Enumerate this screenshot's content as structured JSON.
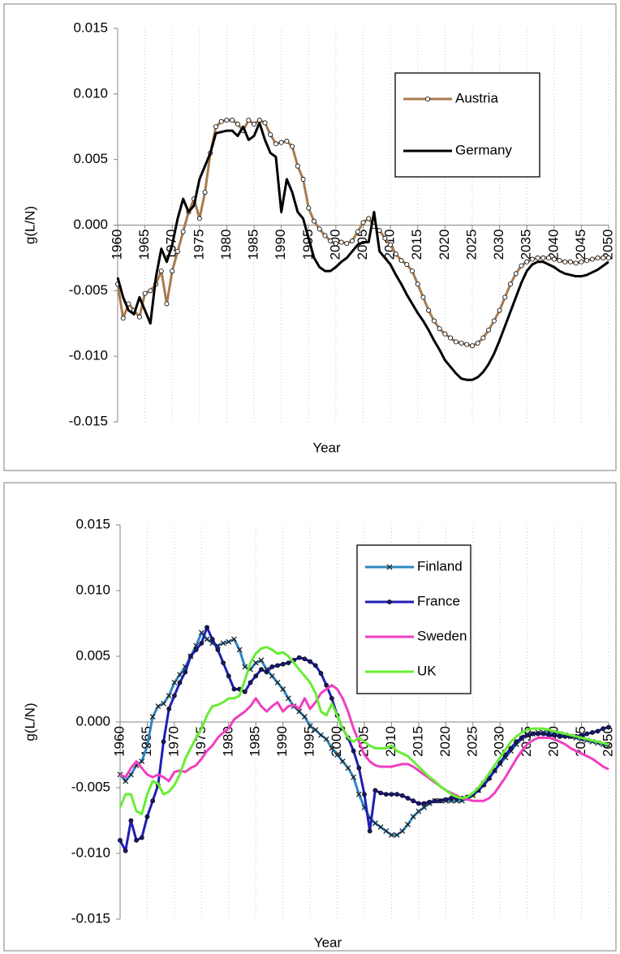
{
  "chart_data": [
    {
      "type": "line",
      "x_label": "Year",
      "y_label": "g(L/N)",
      "x": [
        1960,
        1961,
        1962,
        1963,
        1964,
        1965,
        1966,
        1967,
        1968,
        1969,
        1970,
        1971,
        1972,
        1973,
        1974,
        1975,
        1976,
        1977,
        1978,
        1979,
        1980,
        1981,
        1982,
        1983,
        1984,
        1985,
        1986,
        1987,
        1988,
        1989,
        1990,
        1991,
        1992,
        1993,
        1994,
        1995,
        1996,
        1997,
        1998,
        1999,
        2000,
        2001,
        2002,
        2003,
        2004,
        2005,
        2006,
        2007,
        2008,
        2009,
        2010,
        2011,
        2012,
        2013,
        2014,
        2015,
        2016,
        2017,
        2018,
        2019,
        2020,
        2021,
        2022,
        2023,
        2024,
        2025,
        2026,
        2027,
        2028,
        2029,
        2030,
        2031,
        2032,
        2033,
        2034,
        2035,
        2036,
        2037,
        2038,
        2039,
        2040,
        2041,
        2042,
        2043,
        2044,
        2045,
        2046,
        2047,
        2048,
        2049,
        2050
      ],
      "xlim": [
        1960,
        2050
      ],
      "xticks": [
        1960,
        1965,
        1970,
        1975,
        1980,
        1985,
        1990,
        1995,
        2000,
        2005,
        2010,
        2015,
        2020,
        2025,
        2030,
        2035,
        2040,
        2045,
        2050
      ],
      "ylim": [
        -0.015,
        0.015
      ],
      "yticks": [
        -0.015,
        {
          "value": -0.01,
          "label": "-0.010"
        },
        -0.005,
        {
          "value": 0,
          "label": "0.000"
        },
        0.005,
        {
          "value": 0.01,
          "label": "0.010"
        },
        0.015
      ],
      "grid": "x",
      "legend": "upper right",
      "series": [
        {
          "name": "Austria",
          "color": "#a87b4f",
          "marker": "circle",
          "values": [
            -0.0045,
            -0.0071,
            -0.006,
            -0.0065,
            -0.007,
            -0.0052,
            -0.005,
            -0.0045,
            -0.0035,
            -0.006,
            -0.0035,
            -0.002,
            -0.0005,
            0.001,
            0.002,
            0.0005,
            0.0025,
            0.0055,
            0.0075,
            0.0079,
            0.008,
            0.008,
            0.0077,
            0.0072,
            0.008,
            0.0077,
            0.008,
            0.0078,
            0.0069,
            0.0062,
            0.0063,
            0.0064,
            0.006,
            0.0045,
            0.0035,
            0.0013,
            0.0003,
            -0.0003,
            -0.0008,
            -0.0012,
            -0.0014,
            -0.0013,
            -0.0014,
            -0.0012,
            -0.0005,
            0.0002,
            0.0005,
            -0.0001,
            -0.0004,
            -0.001,
            -0.0015,
            -0.0022,
            -0.0027,
            -0.003,
            -0.0035,
            -0.0045,
            -0.0055,
            -0.0065,
            -0.0073,
            -0.0079,
            -0.0083,
            -0.0086,
            -0.0089,
            -0.009,
            -0.0091,
            -0.0092,
            -0.009,
            -0.0086,
            -0.008,
            -0.0073,
            -0.0065,
            -0.0055,
            -0.0045,
            -0.0037,
            -0.0031,
            -0.0028,
            -0.0026,
            -0.0025,
            -0.0025,
            -0.0025,
            -0.0026,
            -0.0027,
            -0.0028,
            -0.0028,
            -0.0029,
            -0.0028,
            -0.0027,
            -0.0026,
            -0.0025,
            -0.0025,
            -0.0025
          ]
        },
        {
          "name": "Germany",
          "color": "#000000",
          "marker": "none",
          "values": [
            -0.004,
            -0.0055,
            -0.0065,
            -0.0068,
            -0.0055,
            -0.0065,
            -0.0075,
            -0.004,
            -0.0018,
            -0.0028,
            -0.0015,
            0.0005,
            0.002,
            0.001,
            0.0015,
            0.0035,
            0.0045,
            0.0055,
            0.007,
            0.0071,
            0.0072,
            0.0072,
            0.0068,
            0.0075,
            0.0065,
            0.0068,
            0.0078,
            0.0065,
            0.0055,
            0.0052,
            0.001,
            0.0035,
            0.0025,
            0.001,
            0.0005,
            -0.001,
            -0.0025,
            -0.0032,
            -0.0035,
            -0.0035,
            -0.0032,
            -0.0028,
            -0.0025,
            -0.002,
            -0.0015,
            -0.0013,
            -0.0013,
            0.001,
            -0.002,
            -0.0025,
            -0.003,
            -0.0038,
            -0.0045,
            -0.0053,
            -0.006,
            -0.0067,
            -0.0073,
            -0.008,
            -0.0088,
            -0.0095,
            -0.0103,
            -0.0108,
            -0.0113,
            -0.0117,
            -0.0118,
            -0.0118,
            -0.0116,
            -0.0112,
            -0.0106,
            -0.0098,
            -0.0088,
            -0.0077,
            -0.0066,
            -0.0055,
            -0.0044,
            -0.0035,
            -0.003,
            -0.0028,
            -0.0028,
            -0.003,
            -0.0032,
            -0.0035,
            -0.0037,
            -0.0038,
            -0.0039,
            -0.0039,
            -0.0038,
            -0.0036,
            -0.0034,
            -0.0031,
            -0.0028
          ]
        }
      ]
    },
    {
      "type": "line",
      "x_label": "Year",
      "y_label": "g(L/N)",
      "x": [
        1960,
        1961,
        1962,
        1963,
        1964,
        1965,
        1966,
        1967,
        1968,
        1969,
        1970,
        1971,
        1972,
        1973,
        1974,
        1975,
        1976,
        1977,
        1978,
        1979,
        1980,
        1981,
        1982,
        1983,
        1984,
        1985,
        1986,
        1987,
        1988,
        1989,
        1990,
        1991,
        1992,
        1993,
        1994,
        1995,
        1996,
        1997,
        1998,
        1999,
        2000,
        2001,
        2002,
        2003,
        2004,
        2005,
        2006,
        2007,
        2008,
        2009,
        2010,
        2011,
        2012,
        2013,
        2014,
        2015,
        2016,
        2017,
        2018,
        2019,
        2020,
        2021,
        2022,
        2023,
        2024,
        2025,
        2026,
        2027,
        2028,
        2029,
        2030,
        2031,
        2032,
        2033,
        2034,
        2035,
        2036,
        2037,
        2038,
        2039,
        2040,
        2041,
        2042,
        2043,
        2044,
        2045,
        2046,
        2047,
        2048,
        2049,
        2050
      ],
      "xlim": [
        1960,
        2050
      ],
      "xticks": [
        1960,
        1965,
        1970,
        1975,
        1980,
        1985,
        1990,
        1995,
        2000,
        2005,
        2010,
        2015,
        2020,
        2025,
        2030,
        2035,
        2040,
        2045,
        2050
      ],
      "ylim": [
        -0.015,
        0.015
      ],
      "yticks": [
        -0.015,
        {
          "value": -0.01,
          "label": "-0.010"
        },
        -0.005,
        {
          "value": 0,
          "label": "0.000"
        },
        0.005,
        {
          "value": 0.01,
          "label": "0.010"
        },
        0.015
      ],
      "grid": "x",
      "legend": "upper right",
      "series": [
        {
          "name": "Finland",
          "color": "#2e86c1",
          "marker": "x",
          "values": [
            -0.004,
            -0.0045,
            -0.004,
            -0.0033,
            -0.003,
            -0.0018,
            0.0004,
            0.0012,
            0.0014,
            0.002,
            0.003,
            0.0036,
            0.0042,
            0.005,
            0.0058,
            0.0068,
            0.0063,
            0.006,
            0.0058,
            0.006,
            0.0061,
            0.0063,
            0.0055,
            0.0042,
            0.004,
            0.0045,
            0.0047,
            0.004,
            0.0035,
            0.003,
            0.0025,
            0.0018,
            0.0012,
            0.0008,
            0.0004,
            -0.0003,
            -0.0006,
            -0.001,
            -0.0013,
            -0.002,
            -0.0025,
            -0.003,
            -0.0035,
            -0.0042,
            -0.0055,
            -0.0065,
            -0.0073,
            -0.0077,
            -0.008,
            -0.0083,
            -0.0086,
            -0.0086,
            -0.0083,
            -0.0078,
            -0.0072,
            -0.0068,
            -0.0065,
            -0.0062,
            -0.006,
            -0.006,
            -0.006,
            -0.006,
            -0.006,
            -0.006,
            -0.0058,
            -0.0056,
            -0.0052,
            -0.0047,
            -0.0042,
            -0.0037,
            -0.0032,
            -0.0027,
            -0.0022,
            -0.0017,
            -0.0013,
            -0.001,
            -0.0009,
            -0.0008,
            -0.0008,
            -0.0008,
            -0.0008,
            -0.0009,
            -0.001,
            -0.0011,
            -0.0012,
            -0.0013,
            -0.0014,
            -0.0015,
            -0.0016,
            -0.0017,
            -0.0018
          ]
        },
        {
          "name": "France",
          "color": "#1f1fb4",
          "marker": "dot",
          "values": [
            -0.009,
            -0.0098,
            -0.0075,
            -0.009,
            -0.0088,
            -0.0072,
            -0.006,
            -0.0048,
            -0.0015,
            0.001,
            0.002,
            0.003,
            0.0038,
            0.005,
            0.0055,
            0.006,
            0.0072,
            0.0063,
            0.0055,
            0.0045,
            0.0035,
            0.0025,
            0.0025,
            0.0023,
            0.003,
            0.0035,
            0.004,
            0.0038,
            0.0042,
            0.0043,
            0.0044,
            0.0045,
            0.0047,
            0.0049,
            0.0048,
            0.0046,
            0.0043,
            0.0037,
            0.0028,
            0.0018,
            0.0005,
            -0.0005,
            -0.0012,
            -0.0022,
            -0.0035,
            -0.0055,
            -0.0083,
            -0.0052,
            -0.0054,
            -0.0055,
            -0.0055,
            -0.0055,
            -0.0056,
            -0.0058,
            -0.006,
            -0.0062,
            -0.0062,
            -0.0061,
            -0.006,
            -0.006,
            -0.0059,
            -0.0058,
            -0.0058,
            -0.0058,
            -0.0057,
            -0.0055,
            -0.0052,
            -0.0048,
            -0.0043,
            -0.0037,
            -0.0031,
            -0.0025,
            -0.002,
            -0.0015,
            -0.0012,
            -0.001,
            -0.0009,
            -0.0009,
            -0.0009,
            -0.001,
            -0.001,
            -0.0011,
            -0.0011,
            -0.0011,
            -0.0011,
            -0.001,
            -0.0009,
            -0.0008,
            -0.0007,
            -0.0005,
            -0.0004
          ]
        },
        {
          "name": "Sweden",
          "color": "#f03fc0",
          "marker": "none",
          "values": [
            -0.004,
            -0.0042,
            -0.0035,
            -0.003,
            -0.0035,
            -0.004,
            -0.0042,
            -0.004,
            -0.0042,
            -0.0045,
            -0.0038,
            -0.0037,
            -0.0038,
            -0.0035,
            -0.0033,
            -0.0028,
            -0.0022,
            -0.0018,
            -0.0012,
            -0.0008,
            -0.0005,
            0.0002,
            0.0005,
            0.0008,
            0.0012,
            0.0018,
            0.0012,
            0.0008,
            0.0012,
            0.0015,
            0.0008,
            0.0012,
            0.0013,
            0.001,
            0.0018,
            0.001,
            0.0015,
            0.0022,
            0.0025,
            0.0028,
            0.0025,
            0.0018,
            0.0008,
            -0.0005,
            -0.0015,
            -0.0025,
            -0.003,
            -0.0033,
            -0.0034,
            -0.0034,
            -0.0034,
            -0.0033,
            -0.0032,
            -0.0032,
            -0.0034,
            -0.0037,
            -0.004,
            -0.0043,
            -0.0046,
            -0.0049,
            -0.0052,
            -0.0054,
            -0.0056,
            -0.0058,
            -0.0059,
            -0.006,
            -0.006,
            -0.006,
            -0.0058,
            -0.0054,
            -0.0048,
            -0.0042,
            -0.0035,
            -0.0028,
            -0.0022,
            -0.0017,
            -0.0014,
            -0.0012,
            -0.0012,
            -0.0012,
            -0.0013,
            -0.0015,
            -0.0017,
            -0.002,
            -0.0022,
            -0.0024,
            -0.0026,
            -0.0028,
            -0.0031,
            -0.0034,
            -0.0036
          ]
        },
        {
          "name": "UK",
          "color": "#66ee33",
          "marker": "none",
          "values": [
            -0.0065,
            -0.0055,
            -0.0055,
            -0.0068,
            -0.007,
            -0.0055,
            -0.0045,
            -0.0047,
            -0.0055,
            -0.0053,
            -0.0048,
            -0.004,
            -0.0028,
            -0.002,
            -0.0012,
            -0.0005,
            0.0005,
            0.0012,
            0.0013,
            0.0015,
            0.0018,
            0.0018,
            0.002,
            0.0032,
            0.0045,
            0.0052,
            0.0056,
            0.0057,
            0.0055,
            0.0052,
            0.0053,
            0.005,
            0.0045,
            0.004,
            0.0035,
            0.003,
            0.0022,
            0.0008,
            0.0005,
            0.0014,
            0.0005,
            -0.0005,
            -0.0012,
            -0.0015,
            -0.0012,
            -0.0015,
            -0.0018,
            -0.002,
            -0.002,
            -0.002,
            -0.0018,
            -0.0022,
            -0.0024,
            -0.0026,
            -0.003,
            -0.0034,
            -0.0038,
            -0.0042,
            -0.0045,
            -0.0049,
            -0.0052,
            -0.0055,
            -0.0057,
            -0.0058,
            -0.0057,
            -0.0054,
            -0.005,
            -0.0045,
            -0.0039,
            -0.0033,
            -0.0027,
            -0.0021,
            -0.0015,
            -0.0011,
            -0.0008,
            -0.0006,
            -0.0005,
            -0.0005,
            -0.0005,
            -0.0006,
            -0.0007,
            -0.0008,
            -0.0009,
            -0.001,
            -0.0011,
            -0.0012,
            -0.0013,
            -0.0014,
            -0.0015,
            -0.0016,
            -0.0017
          ]
        }
      ]
    }
  ]
}
